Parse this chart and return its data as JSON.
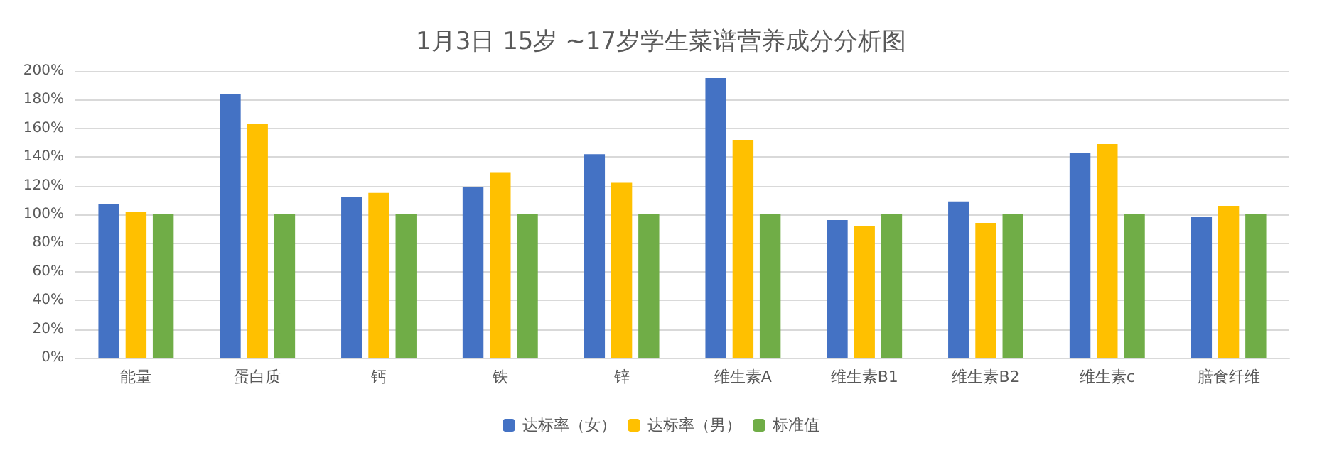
{
  "chart_data": {
    "type": "bar",
    "title": "1月3日 15岁 ~17岁学生菜谱营养成分分析图",
    "categories": [
      "能量",
      "蛋白质",
      "钙",
      "铁",
      "锌",
      "维生素A",
      "维生素B1",
      "维生素B2",
      "维生素c",
      "膳食纤维"
    ],
    "series": [
      {
        "name": "达标率（女）",
        "color": "#4472c4",
        "values": [
          107,
          184,
          112,
          119,
          142,
          195,
          96,
          109,
          143,
          98
        ]
      },
      {
        "name": "达标率（男）",
        "color": "#ffc000",
        "values": [
          102,
          163,
          115,
          129,
          122,
          152,
          92,
          94,
          149,
          106
        ]
      },
      {
        "name": "标准值",
        "color": "#70ad47",
        "values": [
          100,
          100,
          100,
          100,
          100,
          100,
          100,
          100,
          100,
          100
        ]
      }
    ],
    "ylim": [
      0,
      200
    ],
    "yticks": [
      {
        "value": 0,
        "label": "0%"
      },
      {
        "value": 20,
        "label": "20%"
      },
      {
        "value": 40,
        "label": "40%"
      },
      {
        "value": 60,
        "label": "60%"
      },
      {
        "value": 80,
        "label": "80%"
      },
      {
        "value": 100,
        "label": "100%"
      },
      {
        "value": 120,
        "label": "120%"
      },
      {
        "value": 140,
        "label": "140%"
      },
      {
        "value": 160,
        "label": "160%"
      },
      {
        "value": 180,
        "label": "180%"
      },
      {
        "value": 200,
        "label": "200%"
      }
    ],
    "grid": "y",
    "legend": "bottom"
  }
}
